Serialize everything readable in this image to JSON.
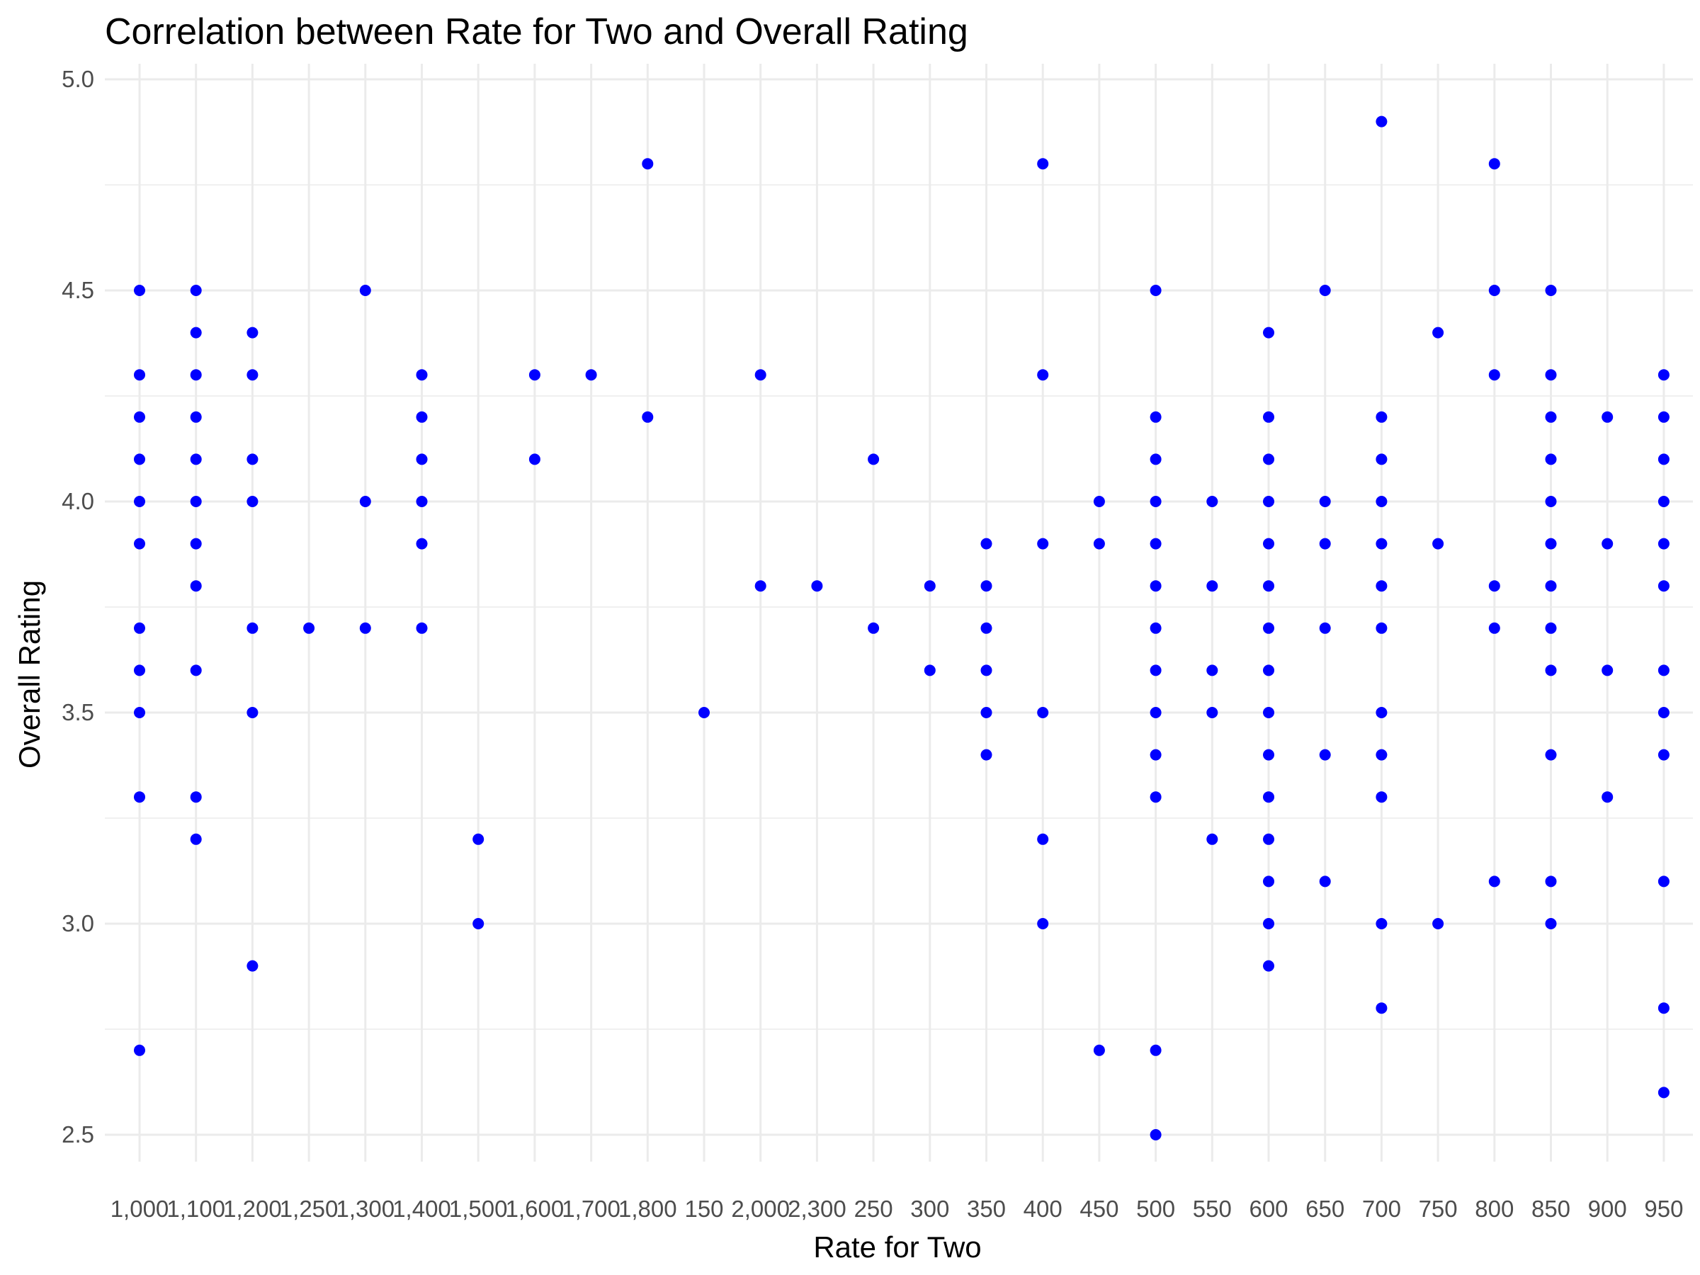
{
  "chart_data": {
    "type": "scatter",
    "title": "Correlation between Rate for Two and Overall Rating",
    "xlabel": "Rate for Two",
    "ylabel": "Overall Rating",
    "x_scale": "categorical",
    "categories": [
      "1,000",
      "1,100",
      "1,200",
      "1,250",
      "1,300",
      "1,400",
      "1,500",
      "1,600",
      "1,700",
      "1,800",
      "150",
      "2,000",
      "2,300",
      "250",
      "300",
      "350",
      "400",
      "450",
      "500",
      "550",
      "600",
      "650",
      "700",
      "750",
      "800",
      "850",
      "900",
      "950"
    ],
    "ylim": [
      2.5,
      5.0
    ],
    "y_ticks": [
      "2.5",
      "3.0",
      "3.5",
      "4.0",
      "4.5",
      "5.0"
    ],
    "grid": true,
    "legend": "none",
    "point_color": "#0000ff",
    "series": [
      {
        "points": [
          {
            "x": "1,000",
            "y": 4.5
          },
          {
            "x": "1,000",
            "y": 4.3
          },
          {
            "x": "1,000",
            "y": 4.2
          },
          {
            "x": "1,000",
            "y": 4.1
          },
          {
            "x": "1,000",
            "y": 4.0
          },
          {
            "x": "1,000",
            "y": 3.9
          },
          {
            "x": "1,000",
            "y": 3.7
          },
          {
            "x": "1,000",
            "y": 3.6
          },
          {
            "x": "1,000",
            "y": 3.5
          },
          {
            "x": "1,000",
            "y": 3.3
          },
          {
            "x": "1,000",
            "y": 2.7
          },
          {
            "x": "1,100",
            "y": 4.5
          },
          {
            "x": "1,100",
            "y": 4.4
          },
          {
            "x": "1,100",
            "y": 4.3
          },
          {
            "x": "1,100",
            "y": 4.2
          },
          {
            "x": "1,100",
            "y": 4.1
          },
          {
            "x": "1,100",
            "y": 4.0
          },
          {
            "x": "1,100",
            "y": 3.9
          },
          {
            "x": "1,100",
            "y": 3.8
          },
          {
            "x": "1,100",
            "y": 3.6
          },
          {
            "x": "1,100",
            "y": 3.3
          },
          {
            "x": "1,100",
            "y": 3.2
          },
          {
            "x": "1,200",
            "y": 4.4
          },
          {
            "x": "1,200",
            "y": 4.3
          },
          {
            "x": "1,200",
            "y": 4.1
          },
          {
            "x": "1,200",
            "y": 4.0
          },
          {
            "x": "1,200",
            "y": 3.7
          },
          {
            "x": "1,200",
            "y": 3.5
          },
          {
            "x": "1,200",
            "y": 2.9
          },
          {
            "x": "1,250",
            "y": 3.7
          },
          {
            "x": "1,300",
            "y": 4.5
          },
          {
            "x": "1,300",
            "y": 4.0
          },
          {
            "x": "1,300",
            "y": 3.7
          },
          {
            "x": "1,400",
            "y": 4.3
          },
          {
            "x": "1,400",
            "y": 4.2
          },
          {
            "x": "1,400",
            "y": 4.1
          },
          {
            "x": "1,400",
            "y": 4.0
          },
          {
            "x": "1,400",
            "y": 3.9
          },
          {
            "x": "1,400",
            "y": 3.7
          },
          {
            "x": "1,500",
            "y": 3.2
          },
          {
            "x": "1,500",
            "y": 3.0
          },
          {
            "x": "1,600",
            "y": 4.3
          },
          {
            "x": "1,600",
            "y": 4.1
          },
          {
            "x": "1,700",
            "y": 4.3
          },
          {
            "x": "1,800",
            "y": 4.8
          },
          {
            "x": "1,800",
            "y": 4.2
          },
          {
            "x": "150",
            "y": 3.5
          },
          {
            "x": "2,000",
            "y": 4.3
          },
          {
            "x": "2,000",
            "y": 3.8
          },
          {
            "x": "2,300",
            "y": 3.8
          },
          {
            "x": "250",
            "y": 4.1
          },
          {
            "x": "250",
            "y": 3.7
          },
          {
            "x": "300",
            "y": 3.8
          },
          {
            "x": "300",
            "y": 3.6
          },
          {
            "x": "350",
            "y": 3.9
          },
          {
            "x": "350",
            "y": 3.8
          },
          {
            "x": "350",
            "y": 3.7
          },
          {
            "x": "350",
            "y": 3.6
          },
          {
            "x": "350",
            "y": 3.5
          },
          {
            "x": "350",
            "y": 3.4
          },
          {
            "x": "400",
            "y": 4.8
          },
          {
            "x": "400",
            "y": 4.3
          },
          {
            "x": "400",
            "y": 3.9
          },
          {
            "x": "400",
            "y": 3.5
          },
          {
            "x": "400",
            "y": 3.2
          },
          {
            "x": "400",
            "y": 3.0
          },
          {
            "x": "450",
            "y": 4.0
          },
          {
            "x": "450",
            "y": 3.9
          },
          {
            "x": "450",
            "y": 2.7
          },
          {
            "x": "500",
            "y": 4.5
          },
          {
            "x": "500",
            "y": 4.2
          },
          {
            "x": "500",
            "y": 4.1
          },
          {
            "x": "500",
            "y": 4.0
          },
          {
            "x": "500",
            "y": 3.9
          },
          {
            "x": "500",
            "y": 3.8
          },
          {
            "x": "500",
            "y": 3.7
          },
          {
            "x": "500",
            "y": 3.6
          },
          {
            "x": "500",
            "y": 3.5
          },
          {
            "x": "500",
            "y": 3.4
          },
          {
            "x": "500",
            "y": 3.3
          },
          {
            "x": "500",
            "y": 2.7
          },
          {
            "x": "500",
            "y": 2.5
          },
          {
            "x": "550",
            "y": 4.0
          },
          {
            "x": "550",
            "y": 3.8
          },
          {
            "x": "550",
            "y": 3.6
          },
          {
            "x": "550",
            "y": 3.5
          },
          {
            "x": "550",
            "y": 3.2
          },
          {
            "x": "600",
            "y": 4.4
          },
          {
            "x": "600",
            "y": 4.2
          },
          {
            "x": "600",
            "y": 4.1
          },
          {
            "x": "600",
            "y": 4.0
          },
          {
            "x": "600",
            "y": 3.9
          },
          {
            "x": "600",
            "y": 3.8
          },
          {
            "x": "600",
            "y": 3.7
          },
          {
            "x": "600",
            "y": 3.6
          },
          {
            "x": "600",
            "y": 3.5
          },
          {
            "x": "600",
            "y": 3.4
          },
          {
            "x": "600",
            "y": 3.3
          },
          {
            "x": "600",
            "y": 3.2
          },
          {
            "x": "600",
            "y": 3.1
          },
          {
            "x": "600",
            "y": 3.0
          },
          {
            "x": "600",
            "y": 2.9
          },
          {
            "x": "650",
            "y": 4.5
          },
          {
            "x": "650",
            "y": 4.0
          },
          {
            "x": "650",
            "y": 3.9
          },
          {
            "x": "650",
            "y": 3.7
          },
          {
            "x": "650",
            "y": 3.4
          },
          {
            "x": "650",
            "y": 3.1
          },
          {
            "x": "700",
            "y": 4.9
          },
          {
            "x": "700",
            "y": 4.2
          },
          {
            "x": "700",
            "y": 4.1
          },
          {
            "x": "700",
            "y": 4.0
          },
          {
            "x": "700",
            "y": 3.9
          },
          {
            "x": "700",
            "y": 3.8
          },
          {
            "x": "700",
            "y": 3.7
          },
          {
            "x": "700",
            "y": 3.5
          },
          {
            "x": "700",
            "y": 3.4
          },
          {
            "x": "700",
            "y": 3.3
          },
          {
            "x": "700",
            "y": 3.0
          },
          {
            "x": "700",
            "y": 2.8
          },
          {
            "x": "750",
            "y": 4.4
          },
          {
            "x": "750",
            "y": 3.9
          },
          {
            "x": "750",
            "y": 3.0
          },
          {
            "x": "800",
            "y": 4.8
          },
          {
            "x": "800",
            "y": 4.5
          },
          {
            "x": "800",
            "y": 4.3
          },
          {
            "x": "800",
            "y": 3.8
          },
          {
            "x": "800",
            "y": 3.7
          },
          {
            "x": "800",
            "y": 3.1
          },
          {
            "x": "850",
            "y": 4.5
          },
          {
            "x": "850",
            "y": 4.3
          },
          {
            "x": "850",
            "y": 4.2
          },
          {
            "x": "850",
            "y": 4.1
          },
          {
            "x": "850",
            "y": 4.0
          },
          {
            "x": "850",
            "y": 3.9
          },
          {
            "x": "850",
            "y": 3.8
          },
          {
            "x": "850",
            "y": 3.7
          },
          {
            "x": "850",
            "y": 3.6
          },
          {
            "x": "850",
            "y": 3.4
          },
          {
            "x": "850",
            "y": 3.1
          },
          {
            "x": "850",
            "y": 3.0
          },
          {
            "x": "900",
            "y": 4.2
          },
          {
            "x": "900",
            "y": 3.9
          },
          {
            "x": "900",
            "y": 3.6
          },
          {
            "x": "900",
            "y": 3.3
          },
          {
            "x": "950",
            "y": 4.3
          },
          {
            "x": "950",
            "y": 4.2
          },
          {
            "x": "950",
            "y": 4.1
          },
          {
            "x": "950",
            "y": 4.0
          },
          {
            "x": "950",
            "y": 3.9
          },
          {
            "x": "950",
            "y": 3.8
          },
          {
            "x": "950",
            "y": 3.6
          },
          {
            "x": "950",
            "y": 3.5
          },
          {
            "x": "950",
            "y": 3.4
          },
          {
            "x": "950",
            "y": 3.1
          },
          {
            "x": "950",
            "y": 2.8
          },
          {
            "x": "950",
            "y": 2.6
          }
        ]
      }
    ]
  }
}
